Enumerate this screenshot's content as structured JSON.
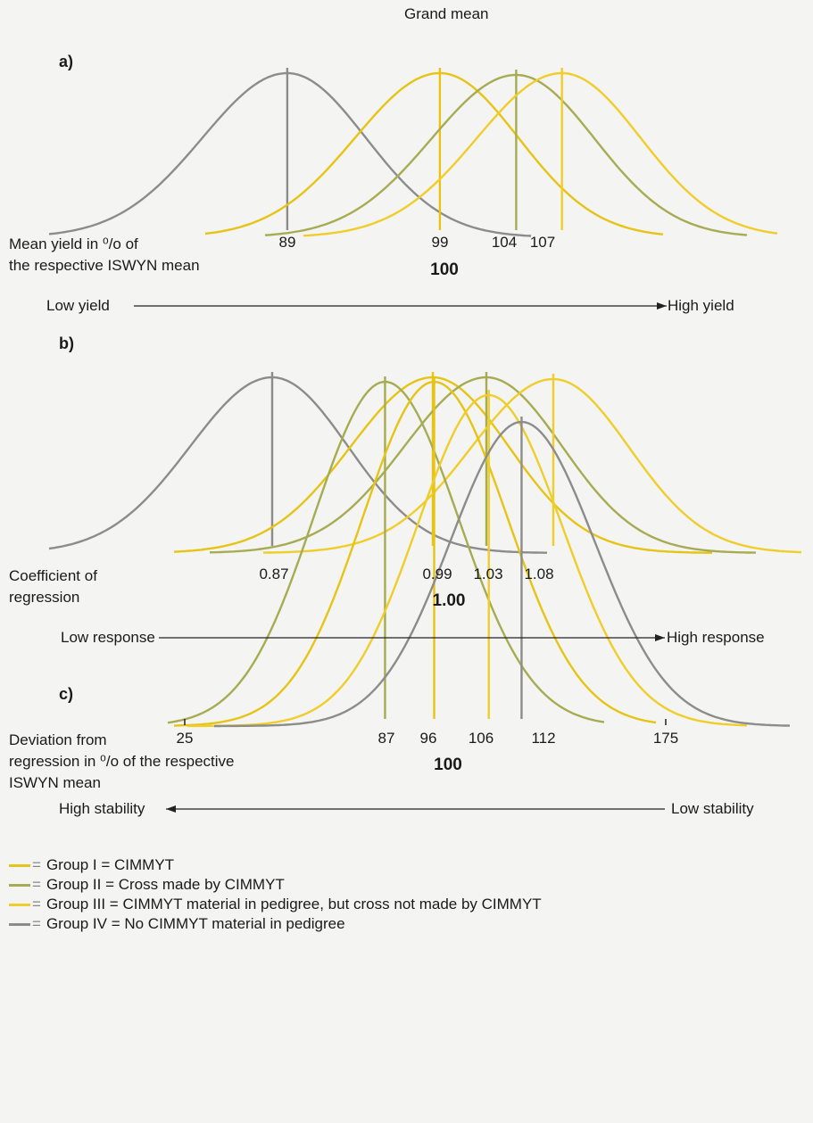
{
  "title": "Grand mean",
  "colors": {
    "group1": "#e6c416",
    "group2": "#a7ab52",
    "group3": "#efcd2a",
    "group4": "#8c8c8c",
    "axis": "#222222"
  },
  "panels": [
    {
      "id": "a",
      "label": "a)",
      "axis_label": [
        "Mean yield in ⁰/o of",
        "the respective ISWYN mean"
      ],
      "reference": "100",
      "tick_labels": [
        "89",
        "99",
        "104",
        "107"
      ],
      "scale_left": "Low yield",
      "scale_right": "High yield",
      "curves": [
        {
          "group": "group4",
          "mean": 89
        },
        {
          "group": "group1",
          "mean": 99
        },
        {
          "group": "group2",
          "mean": 104
        },
        {
          "group": "group3",
          "mean": 107
        }
      ]
    },
    {
      "id": "b",
      "label": "b)",
      "axis_label": [
        "Coefficient of",
        "regression"
      ],
      "reference": "1.00",
      "tick_labels": [
        "0.87",
        "0.99",
        "1.03",
        "1.08"
      ],
      "scale_left": "Low response",
      "scale_right": "High response",
      "curves": [
        {
          "group": "group4",
          "mean": 0.87
        },
        {
          "group": "group1",
          "mean": 0.99
        },
        {
          "group": "group2",
          "mean": 1.03
        },
        {
          "group": "group3",
          "mean": 1.08
        }
      ]
    },
    {
      "id": "c",
      "label": "c)",
      "axis_label": [
        "Deviation from",
        "regression in ⁰/o of the respective",
        "ISWYN mean"
      ],
      "reference": "100",
      "tick_labels": [
        "25",
        "87",
        "96",
        "106",
        "112",
        "175"
      ],
      "scale_left": "High stability",
      "scale_right": "Low stability",
      "curves": [
        {
          "group": "group2",
          "mean": 87
        },
        {
          "group": "group1",
          "mean": 96
        },
        {
          "group": "group3",
          "mean": 106
        },
        {
          "group": "group4",
          "mean": 112
        }
      ]
    }
  ],
  "legend": [
    {
      "group": "group1",
      "eq": "=",
      "text": "Group I = CIMMYT"
    },
    {
      "group": "group2",
      "eq": "=",
      "text": "Group II = Cross made by CIMMYT"
    },
    {
      "group": "group3",
      "eq": "=",
      "text": "Group III = CIMMYT material in pedigree, but cross not made by CIMMYT"
    },
    {
      "group": "group4",
      "eq": "=",
      "text": "Group IV = No CIMMYT material in pedigree"
    }
  ]
}
